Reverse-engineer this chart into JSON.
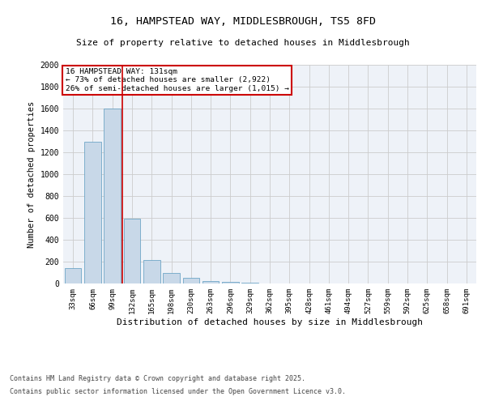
{
  "title1": "16, HAMPSTEAD WAY, MIDDLESBROUGH, TS5 8FD",
  "title2": "Size of property relative to detached houses in Middlesbrough",
  "xlabel": "Distribution of detached houses by size in Middlesbrough",
  "ylabel": "Number of detached properties",
  "categories": [
    "33sqm",
    "66sqm",
    "99sqm",
    "132sqm",
    "165sqm",
    "198sqm",
    "230sqm",
    "263sqm",
    "296sqm",
    "329sqm",
    "362sqm",
    "395sqm",
    "428sqm",
    "461sqm",
    "494sqm",
    "527sqm",
    "559sqm",
    "592sqm",
    "625sqm",
    "658sqm",
    "691sqm"
  ],
  "values": [
    140,
    1300,
    1600,
    590,
    215,
    100,
    50,
    25,
    15,
    5,
    2,
    1,
    1,
    0,
    0,
    0,
    0,
    0,
    0,
    0,
    0
  ],
  "bar_color": "#c8d8e8",
  "bar_edge_color": "#5a9abf",
  "grid_color": "#cccccc",
  "bg_color": "#eef2f8",
  "vline_color": "#cc0000",
  "annotation_text": "16 HAMPSTEAD WAY: 131sqm\n← 73% of detached houses are smaller (2,922)\n26% of semi-detached houses are larger (1,015) →",
  "annotation_box_color": "#cc0000",
  "footer1": "Contains HM Land Registry data © Crown copyright and database right 2025.",
  "footer2": "Contains public sector information licensed under the Open Government Licence v3.0.",
  "ylim": [
    0,
    2000
  ],
  "yticks": [
    0,
    200,
    400,
    600,
    800,
    1000,
    1200,
    1400,
    1600,
    1800,
    2000
  ]
}
